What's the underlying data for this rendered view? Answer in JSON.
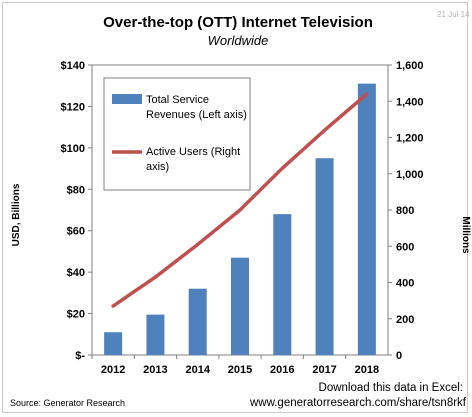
{
  "chart_data": {
    "type": "bar",
    "title": "Over-the-top (OTT) Internet Television",
    "subtitle": "Worldwide",
    "date_stamp": "21 Jul 14",
    "categories": [
      "2012",
      "2013",
      "2014",
      "2015",
      "2016",
      "2017",
      "2018"
    ],
    "series": [
      {
        "name": "Total Service Revenues (Left axis)",
        "legend_lines": [
          "Total Service",
          "Revenues (Left axis)"
        ],
        "type": "bar",
        "axis": "left",
        "color": "#4f81bd",
        "values": [
          11,
          19.5,
          32,
          47,
          68,
          95,
          131
        ]
      },
      {
        "name": "Active Users (Right axis)",
        "legend_lines": [
          "Active Users (Right",
          "axis)"
        ],
        "type": "line",
        "axis": "right",
        "color": "#c0504d",
        "values": [
          270,
          430,
          610,
          800,
          1030,
          1240,
          1440
        ]
      }
    ],
    "ylabel_left": "USD, Billions",
    "ylabel_right": "Millions",
    "ylim_left": [
      0,
      140
    ],
    "ylim_right": [
      0,
      1600
    ],
    "yticks_left": [
      "$-",
      "$20",
      "$40",
      "$60",
      "$80",
      "$100",
      "$120",
      "$140"
    ],
    "yticks_right": [
      "0",
      "200",
      "400",
      "600",
      "800",
      "1,000",
      "1,200",
      "1,400",
      "1,600"
    ],
    "grid": false,
    "legend_position": "top-left"
  },
  "footer": {
    "source": "Source: Generator Research",
    "download_line1": "Download this data in Excel:",
    "download_line2": "www.generatorresearch.com/share/tsn8rkf"
  }
}
